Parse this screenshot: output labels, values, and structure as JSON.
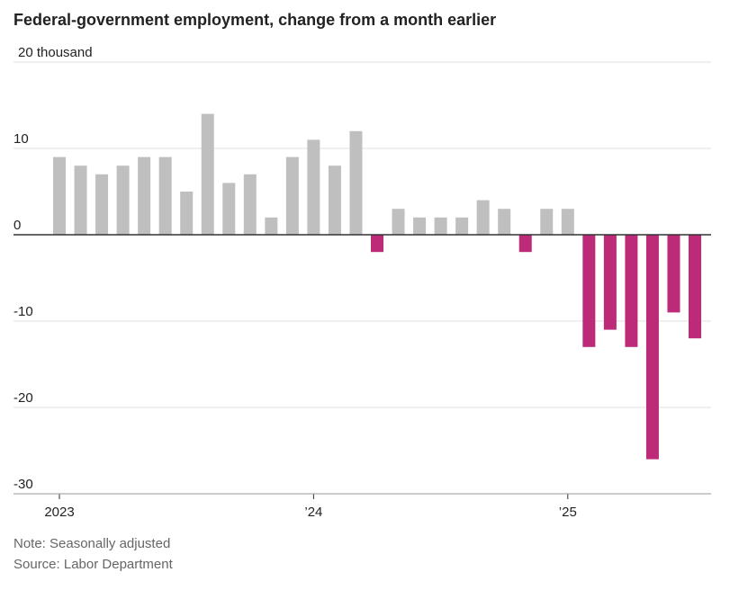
{
  "chart_data": {
    "type": "bar",
    "title": "Federal-government employment, change from a month earlier",
    "categories": [
      "2023",
      null,
      null,
      null,
      null,
      null,
      null,
      null,
      null,
      null,
      null,
      null,
      "’24",
      null,
      null,
      null,
      null,
      null,
      null,
      null,
      null,
      null,
      null,
      null,
      "’25",
      null,
      null,
      null,
      null,
      null,
      null
    ],
    "values": [
      9,
      8,
      7,
      8,
      9,
      9,
      5,
      14,
      6,
      7,
      2,
      9,
      11,
      8,
      12,
      -2,
      3,
      2,
      2,
      2,
      4,
      3,
      -2,
      3,
      3,
      -13,
      -11,
      -13,
      -26,
      -9,
      -12
    ],
    "color": "#bfbfbf",
    "negative_color": "#bc2a78",
    "ylim": [
      -30,
      20
    ],
    "yticks": [
      {
        "value": 20,
        "label": "20 thousand"
      },
      10,
      0,
      -10,
      -20,
      -30
    ],
    "grid": true,
    "note": "Note: Seasonally adjusted",
    "source": "Source: Labor Department"
  }
}
